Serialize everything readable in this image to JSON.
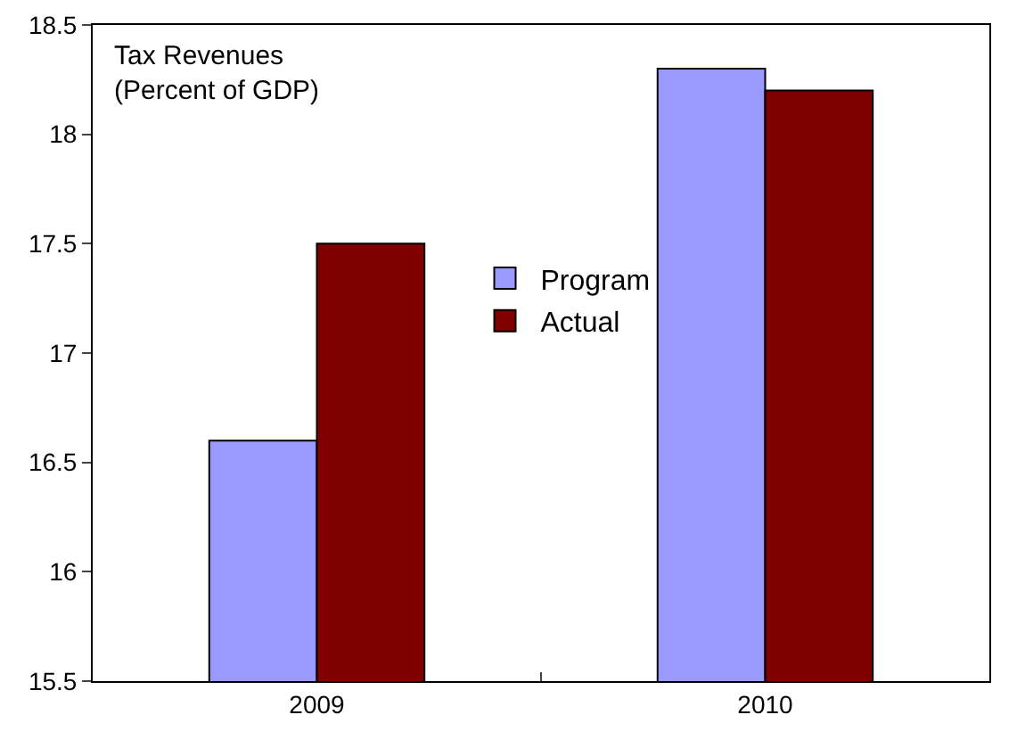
{
  "chart_data": {
    "type": "bar",
    "title": "Tax Revenues\n(Percent of GDP)",
    "categories": [
      "2009",
      "2010"
    ],
    "series": [
      {
        "name": "Program",
        "color": "#9999ff",
        "values": [
          16.6,
          18.3
        ]
      },
      {
        "name": "Actual",
        "color": "#800000",
        "values": [
          17.5,
          18.2
        ]
      }
    ],
    "ylim": [
      15.5,
      18.5
    ],
    "yticks": [
      15.5,
      16,
      16.5,
      17,
      17.5,
      18,
      18.5
    ],
    "grid": false,
    "legend": "center"
  }
}
